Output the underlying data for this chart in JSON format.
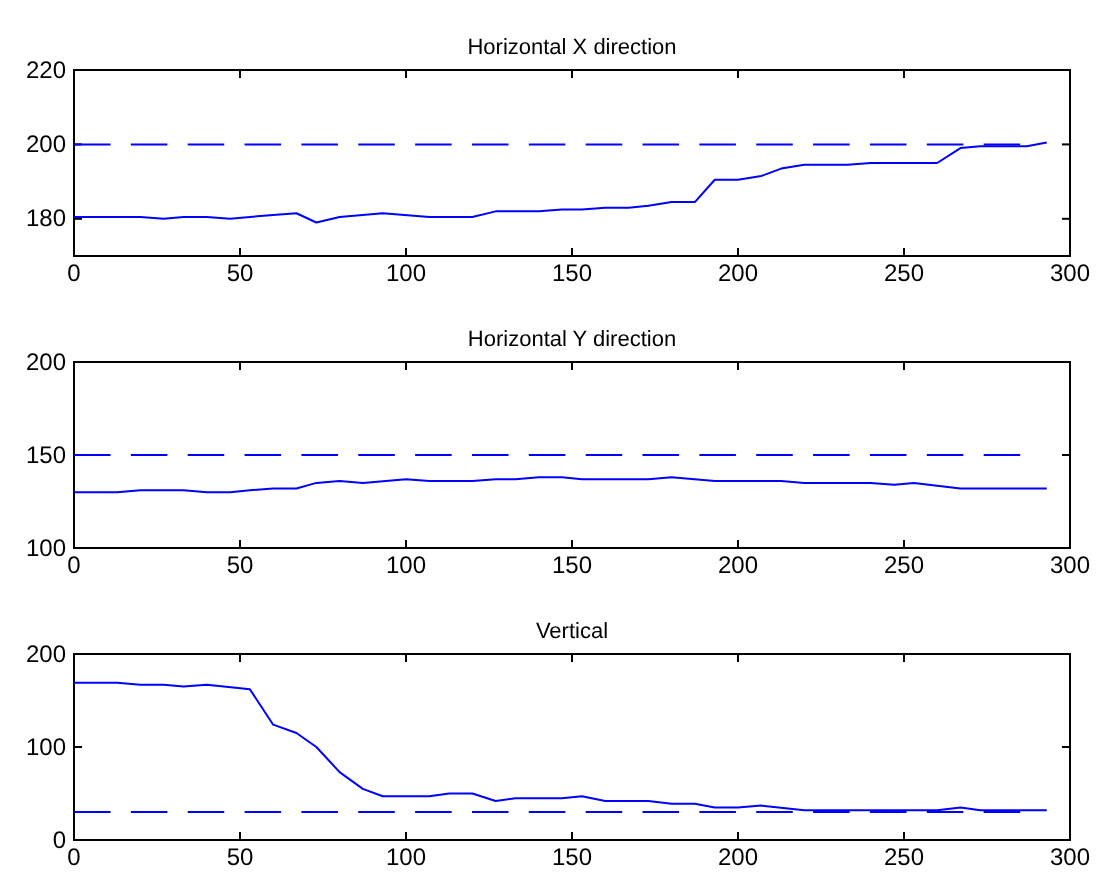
{
  "chart_data": [
    {
      "type": "line",
      "title": "Horizontal X direction",
      "xlim": [
        0,
        300
      ],
      "xticks": [
        0,
        50,
        100,
        150,
        200,
        250,
        300
      ],
      "ylim": [
        170,
        220
      ],
      "yticks": [
        180,
        200,
        220
      ],
      "grid": false,
      "series": [
        {
          "color": "#0000ff",
          "line_style": "solid",
          "x": [
            0,
            13,
            20,
            27,
            33,
            40,
            47,
            53,
            60,
            67,
            73,
            80,
            93,
            107,
            120,
            127,
            140,
            147,
            153,
            160,
            167,
            173,
            180,
            187,
            193,
            200,
            207,
            213,
            220,
            233,
            240,
            260,
            267,
            273,
            287,
            293
          ],
          "values": [
            180.5,
            180.5,
            180.5,
            180,
            180.5,
            180.5,
            180,
            180.5,
            181,
            181.5,
            179,
            180.5,
            181.5,
            180.5,
            180.5,
            182,
            182,
            182.5,
            182.5,
            183,
            183,
            183.5,
            184.5,
            184.5,
            190.5,
            190.5,
            191.5,
            193.5,
            194.5,
            194.5,
            195,
            195,
            199,
            199.5,
            199.5,
            200.5
          ]
        },
        {
          "color": "#0000ff",
          "line_style": "dashed",
          "x": [
            0,
            285
          ],
          "values": [
            200,
            200
          ]
        }
      ]
    },
    {
      "type": "line",
      "title": "Horizontal Y direction",
      "xlim": [
        0,
        300
      ],
      "xticks": [
        0,
        50,
        100,
        150,
        200,
        250,
        300
      ],
      "ylim": [
        100,
        200
      ],
      "yticks": [
        100,
        150,
        200
      ],
      "grid": false,
      "series": [
        {
          "color": "#0000ff",
          "line_style": "solid",
          "x": [
            0,
            13,
            20,
            33,
            40,
            47,
            53,
            60,
            67,
            73,
            80,
            87,
            100,
            107,
            120,
            127,
            133,
            140,
            147,
            153,
            173,
            180,
            193,
            213,
            220,
            240,
            247,
            253,
            267,
            293
          ],
          "values": [
            130,
            130,
            131,
            131,
            130,
            130,
            131,
            132,
            132,
            135,
            136,
            135,
            137,
            136,
            136,
            137,
            137,
            138,
            138,
            137,
            137,
            138,
            136,
            136,
            135,
            135,
            134,
            135,
            132,
            132
          ]
        },
        {
          "color": "#0000ff",
          "line_style": "dashed",
          "x": [
            0,
            285
          ],
          "values": [
            150,
            150
          ]
        }
      ]
    },
    {
      "type": "line",
      "title": "Vertical",
      "xlim": [
        0,
        300
      ],
      "xticks": [
        0,
        50,
        100,
        150,
        200,
        250,
        300
      ],
      "ylim": [
        0,
        200
      ],
      "yticks": [
        0,
        100,
        200
      ],
      "grid": false,
      "series": [
        {
          "color": "#0000ff",
          "line_style": "solid",
          "x": [
            0,
            13,
            20,
            27,
            33,
            40,
            53,
            60,
            67,
            73,
            80,
            87,
            93,
            107,
            113,
            120,
            127,
            133,
            147,
            153,
            160,
            173,
            180,
            187,
            193,
            200,
            207,
            220,
            240,
            260,
            267,
            273,
            293
          ],
          "values": [
            169,
            169,
            167,
            167,
            165,
            167,
            162,
            124,
            115,
            100,
            73,
            55,
            47,
            47,
            50,
            50,
            42,
            45,
            45,
            47,
            42,
            42,
            39,
            39,
            35,
            35,
            37,
            32,
            32,
            32,
            35,
            32,
            32
          ]
        },
        {
          "color": "#0000ff",
          "line_style": "dashed",
          "x": [
            0,
            285
          ],
          "values": [
            30,
            30
          ]
        }
      ]
    }
  ]
}
